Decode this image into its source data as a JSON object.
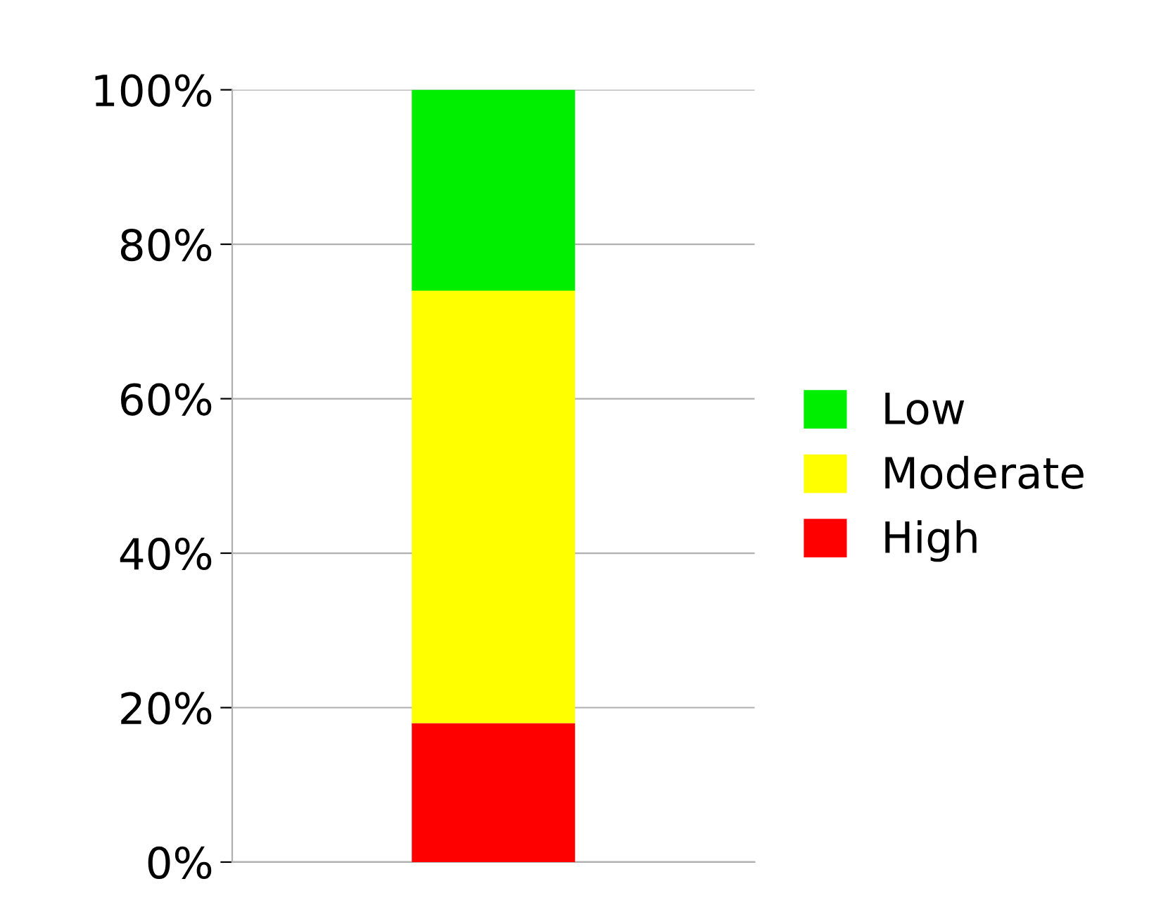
{
  "chart_data": {
    "type": "bar",
    "stacked": true,
    "categories": [
      null
    ],
    "series": [
      {
        "name": "High",
        "color": "#ff0000",
        "values": [
          18
        ]
      },
      {
        "name": "Moderate",
        "color": "#ffff00",
        "values": [
          56
        ]
      },
      {
        "name": "Low",
        "color": "#00ee00",
        "values": [
          26
        ]
      }
    ],
    "ylim": [
      0,
      100
    ],
    "yticks": [
      {
        "value": 0,
        "label": "0%"
      },
      {
        "value": 20,
        "label": "20%"
      },
      {
        "value": 40,
        "label": "40%"
      },
      {
        "value": 60,
        "label": "60%"
      },
      {
        "value": 80,
        "label": "80%"
      },
      {
        "value": 100,
        "label": "100%"
      }
    ],
    "grid": "y",
    "legend": "right"
  }
}
